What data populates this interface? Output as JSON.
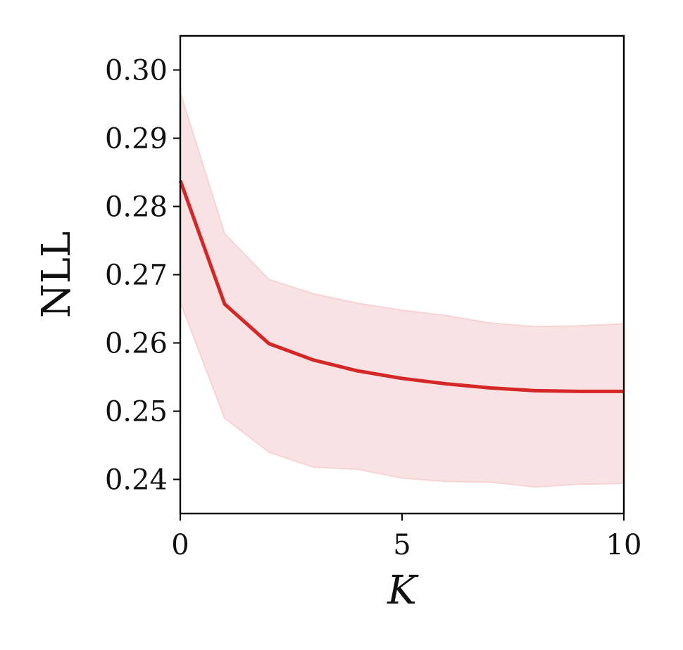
{
  "chart_data": {
    "type": "line",
    "title": "",
    "xlabel": "K",
    "ylabel": "NLL",
    "xlim": [
      0,
      10
    ],
    "ylim": [
      0.235,
      0.305
    ],
    "xticks": [
      0,
      5,
      10
    ],
    "xtick_labels": [
      "0",
      "5",
      "10"
    ],
    "yticks": [
      0.24,
      0.25,
      0.26,
      0.27,
      0.28,
      0.29,
      0.3
    ],
    "ytick_labels": [
      "0.24",
      "0.25",
      "0.26",
      "0.27",
      "0.28",
      "0.29",
      "0.30"
    ],
    "grid": false,
    "legend": "none",
    "series": [
      {
        "x": [
          0,
          1,
          2,
          3,
          4,
          5,
          6,
          7,
          8,
          9,
          10
        ],
        "y": [
          0.2838,
          0.2657,
          0.2599,
          0.2575,
          0.2559,
          0.2548,
          0.254,
          0.2534,
          0.253,
          0.2529,
          0.2529
        ],
        "band_upper": [
          0.2967,
          0.276,
          0.2693,
          0.2672,
          0.2658,
          0.2648,
          0.264,
          0.2629,
          0.2624,
          0.2625,
          0.2628
        ],
        "band_lower": [
          0.266,
          0.249,
          0.244,
          0.2418,
          0.2415,
          0.2402,
          0.2397,
          0.2396,
          0.2389,
          0.2393,
          0.2394
        ],
        "color": "#d62728",
        "band_color": "#f6d3d4"
      }
    ]
  }
}
